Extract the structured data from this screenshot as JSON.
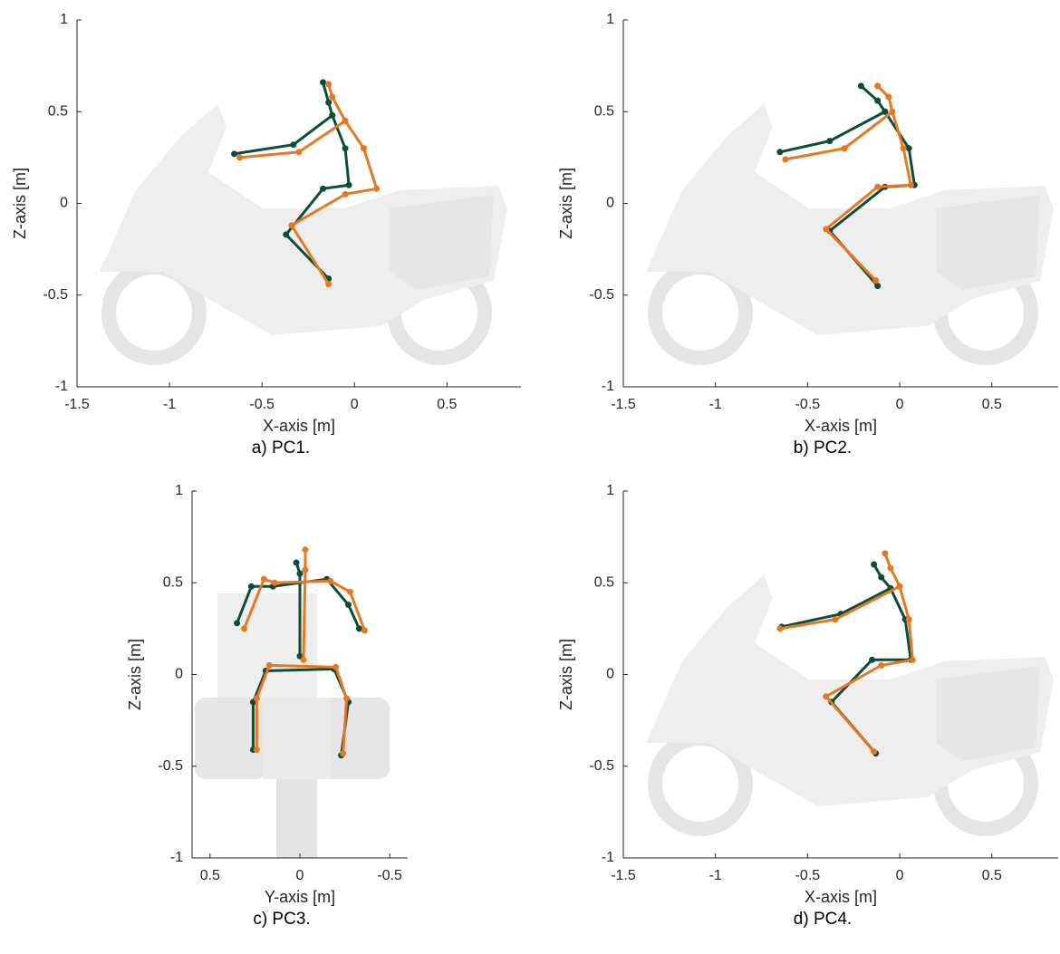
{
  "chart_data": [
    {
      "type": "line",
      "caption": "a) PC1.",
      "xlabel": "X-axis [m]",
      "ylabel": "Z-axis [m]",
      "xlim": [
        -1.5,
        0.9
      ],
      "ylim": [
        -1,
        1
      ],
      "xticks": [
        -1.5,
        -1,
        -0.5,
        0,
        0.5
      ],
      "yticks": [
        -1,
        -0.5,
        0,
        0.5,
        1
      ],
      "series": [
        {
          "color": "#0b4d3a",
          "x": [
            -0.65,
            -0.33,
            -0.12,
            -0.14,
            -0.17,
            null,
            -0.12,
            -0.05,
            -0.03,
            -0.17,
            -0.37,
            -0.14
          ],
          "values": [
            0.27,
            0.32,
            0.48,
            0.55,
            0.66,
            null,
            0.48,
            0.3,
            0.1,
            0.08,
            -0.17,
            -0.41
          ]
        },
        {
          "color": "#e87722",
          "x": [
            -0.62,
            -0.3,
            -0.05,
            -0.12,
            -0.14,
            null,
            -0.05,
            0.05,
            0.12,
            -0.05,
            -0.34,
            -0.14
          ],
          "values": [
            0.25,
            0.28,
            0.45,
            0.58,
            0.65,
            null,
            0.45,
            0.3,
            0.08,
            0.05,
            -0.12,
            -0.44
          ]
        }
      ]
    },
    {
      "type": "line",
      "caption": "b) PC2.",
      "xlabel": "X-axis [m]",
      "ylabel": "Z-axis [m]",
      "xlim": [
        -1.5,
        0.86
      ],
      "ylim": [
        -1,
        1
      ],
      "xticks": [
        -1.5,
        -1,
        -0.5,
        0,
        0.5
      ],
      "yticks": [
        -1,
        -0.5,
        0,
        0.5,
        1
      ],
      "series": [
        {
          "color": "#0b4d3a",
          "x": [
            -0.65,
            -0.38,
            -0.08,
            -0.12,
            -0.21,
            null,
            -0.08,
            0.05,
            0.08,
            -0.08,
            -0.38,
            -0.12
          ],
          "values": [
            0.28,
            0.34,
            0.5,
            0.56,
            0.64,
            null,
            0.5,
            0.3,
            0.1,
            0.09,
            -0.15,
            -0.45
          ]
        },
        {
          "color": "#e87722",
          "x": [
            -0.62,
            -0.3,
            -0.04,
            -0.06,
            -0.12,
            null,
            -0.04,
            0.02,
            0.06,
            -0.12,
            -0.4,
            -0.13
          ],
          "values": [
            0.24,
            0.3,
            0.5,
            0.58,
            0.64,
            null,
            0.5,
            0.3,
            0.1,
            0.09,
            -0.14,
            -0.42
          ]
        }
      ]
    },
    {
      "type": "line",
      "caption": "c) PC3.",
      "xlabel": "Y-axis [m]",
      "ylabel": "Z-axis [m]",
      "xlim": [
        0.6,
        -0.6
      ],
      "ylim": [
        -1,
        1
      ],
      "xticks": [
        0.5,
        0,
        -0.5
      ],
      "yticks": [
        -1,
        -0.5,
        0,
        0.5,
        1
      ],
      "series": [
        {
          "color": "#0b4d3a",
          "x": [
            0.35,
            0.27,
            0.15,
            -0.15,
            -0.27,
            -0.33,
            null,
            0.02,
            0,
            0,
            null,
            0.26,
            0.26,
            0.19,
            -0.19,
            -0.27,
            -0.23
          ],
          "values": [
            0.28,
            0.48,
            0.48,
            0.52,
            0.38,
            0.25,
            null,
            0.61,
            0.55,
            0.1,
            null,
            -0.41,
            -0.15,
            0.02,
            0.03,
            -0.15,
            -0.44
          ]
        },
        {
          "color": "#e87722",
          "x": [
            0.31,
            0.2,
            0.14,
            -0.17,
            -0.28,
            -0.36,
            null,
            -0.03,
            -0.03,
            -0.02,
            null,
            0.24,
            0.24,
            0.17,
            -0.2,
            -0.26,
            -0.24
          ],
          "values": [
            0.25,
            0.52,
            0.5,
            0.51,
            0.45,
            0.24,
            null,
            0.68,
            0.57,
            0.08,
            null,
            -0.41,
            -0.13,
            0.05,
            0.04,
            -0.13,
            -0.43
          ]
        }
      ]
    },
    {
      "type": "line",
      "caption": "d) PC4.",
      "xlabel": "X-axis [m]",
      "ylabel": "Z-axis [m]",
      "xlim": [
        -1.5,
        0.86
      ],
      "ylim": [
        -1,
        1
      ],
      "xticks": [
        -1.5,
        -1,
        -0.5,
        0,
        0.5
      ],
      "yticks": [
        -1,
        -0.5,
        0,
        0.5,
        1
      ],
      "series": [
        {
          "color": "#0b4d3a",
          "x": [
            -0.64,
            -0.32,
            -0.05,
            -0.1,
            -0.14,
            null,
            -0.05,
            0.03,
            0.06,
            -0.15,
            -0.37,
            -0.13
          ],
          "values": [
            0.26,
            0.33,
            0.47,
            0.53,
            0.6,
            null,
            0.47,
            0.3,
            0.08,
            0.08,
            -0.15,
            -0.43
          ]
        },
        {
          "color": "#e87722",
          "x": [
            -0.65,
            -0.35,
            0,
            -0.05,
            -0.08,
            null,
            0,
            0.05,
            0.07,
            -0.1,
            -0.4,
            -0.14
          ],
          "values": [
            0.25,
            0.3,
            0.48,
            0.58,
            0.66,
            null,
            0.48,
            0.3,
            0.08,
            0.05,
            -0.12,
            -0.42
          ]
        }
      ]
    }
  ]
}
